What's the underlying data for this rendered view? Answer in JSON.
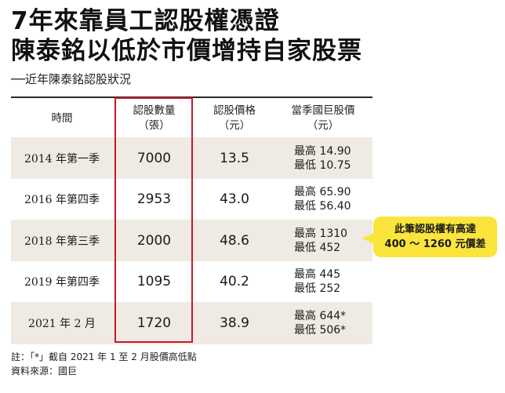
{
  "title_line1": "7年來靠員工認股權憑證",
  "title_line2": "陳泰銘以低於市價增持自家股票",
  "subtitle": "──近年陳泰銘認股狀況",
  "headers": {
    "period": "時間",
    "shares_line1": "認股數量",
    "shares_line2": "（張）",
    "price_line1": "認股價格",
    "price_line2": "（元）",
    "market_line1": "當季國巨股價",
    "market_line2": "（元）"
  },
  "rows": [
    {
      "period": "2014 年第一季",
      "shares": "7000",
      "price": "13.5",
      "high": "最高 14.90",
      "low": "最低 10.75"
    },
    {
      "period": "2016 年第四季",
      "shares": "2953",
      "price": "43.0",
      "high": "最高 65.90",
      "low": "最低 56.40"
    },
    {
      "period": "2018 年第三季",
      "shares": "2000",
      "price": "48.6",
      "high": "最高 1310",
      "low": "最低 452"
    },
    {
      "period": "2019 年第四季",
      "shares": "1095",
      "price": "40.2",
      "high": "最高 445",
      "low": "最低 252"
    },
    {
      "period": "2021 年 2 月",
      "shares": "1720",
      "price": "38.9",
      "high": "最高 644*",
      "low": "最低 506*"
    }
  ],
  "callout": {
    "line1": "此筆認股權有高達",
    "line2": "400 ～ 1260 元價差",
    "color": "#fbe53c"
  },
  "notes": {
    "note": "註：「*」截自 2021 年 1 至 2 月股價高低點",
    "source": "資料來源：國巨"
  },
  "colors": {
    "highlight": "#c8182a",
    "row_shade": "#efeae4"
  }
}
